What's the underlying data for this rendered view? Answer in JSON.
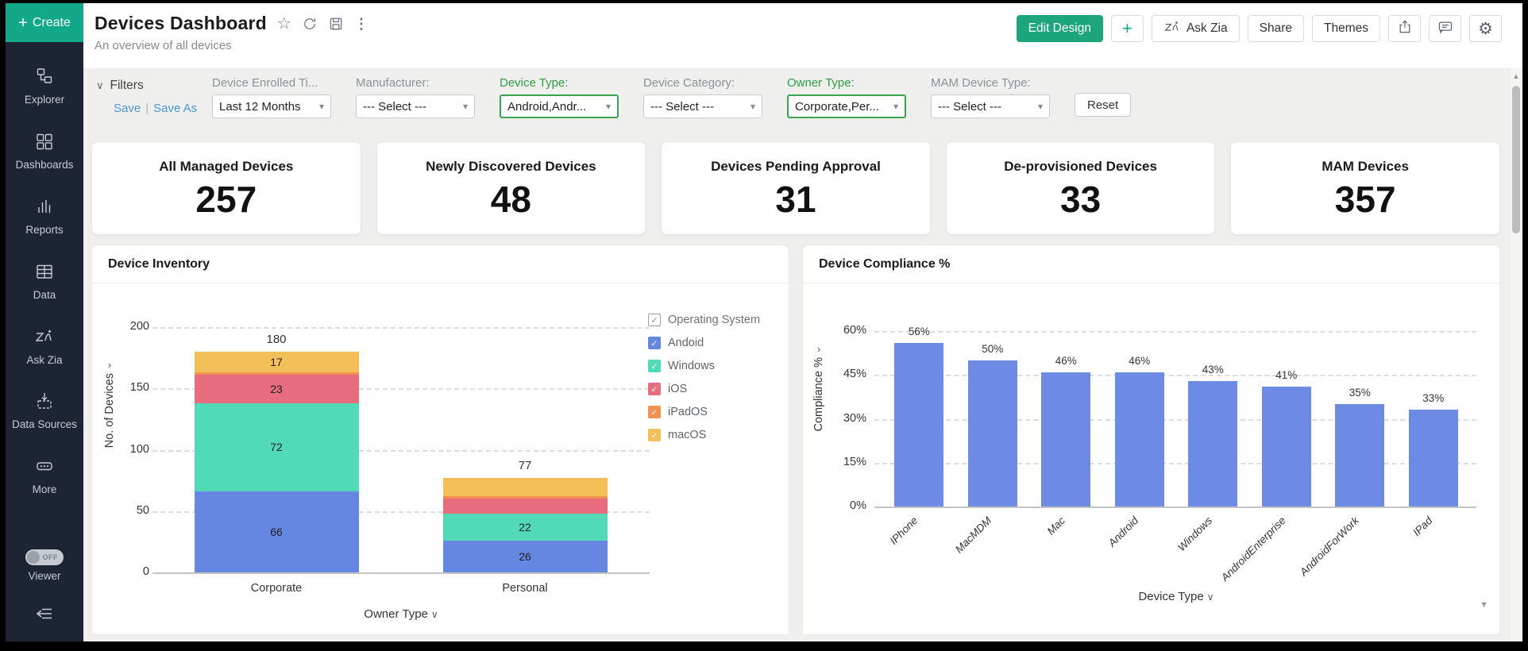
{
  "icons": {
    "plus": "+",
    "star": "☆",
    "kebab": "⋮",
    "caret": "▾",
    "filters_chevron": "∨",
    "axis_chevron": "∨",
    "y_chevron": "›",
    "scroll_up": "▲",
    "scroll_down": "▼",
    "gear": "⚙",
    "pipe": "|",
    "check": "✓"
  },
  "sidebar": {
    "create_label": "Create",
    "items": [
      {
        "label": "Explorer"
      },
      {
        "label": "Dashboards"
      },
      {
        "label": "Reports"
      },
      {
        "label": "Data"
      },
      {
        "label": "Ask Zia"
      },
      {
        "label": "Data Sources"
      },
      {
        "label": "More"
      }
    ],
    "viewer": {
      "label": "Viewer",
      "toggle_state": "OFF"
    }
  },
  "header": {
    "title": "Devices Dashboard",
    "subtitle": "An overview of all devices",
    "actions": {
      "edit_design": "Edit Design",
      "ask_zia": "Ask Zia",
      "share": "Share",
      "themes": "Themes"
    }
  },
  "filters": {
    "title": "Filters",
    "save": "Save",
    "save_as": "Save As",
    "reset": "Reset",
    "items": [
      {
        "label": "Device Enrolled Ti...",
        "value": "Last 12 Months",
        "active": false
      },
      {
        "label": "Manufacturer:",
        "value": "--- Select ---",
        "active": false
      },
      {
        "label": "Device Type:",
        "value": "Android,Andr...",
        "active": true
      },
      {
        "label": "Device Category:",
        "value": "--- Select ---",
        "active": false
      },
      {
        "label": "Owner Type:",
        "value": "Corporate,Per...",
        "active": true
      },
      {
        "label": "MAM Device Type:",
        "value": "--- Select ---",
        "active": false
      }
    ]
  },
  "kpis": [
    {
      "label": "All Managed Devices",
      "value": "257"
    },
    {
      "label": "Newly Discovered Devices",
      "value": "48"
    },
    {
      "label": "Devices Pending Approval",
      "value": "31"
    },
    {
      "label": "De-provisioned Devices",
      "value": "33"
    },
    {
      "label": "MAM Devices",
      "value": "357"
    }
  ],
  "chart_data": [
    {
      "type": "bar",
      "stacked": true,
      "title": "Device Inventory",
      "categories": [
        "Corporate",
        "Personal"
      ],
      "series": [
        {
          "name": "Andoid",
          "color": "#6687E1",
          "values": [
            66,
            26
          ],
          "labels": [
            "66",
            "26"
          ]
        },
        {
          "name": "Windows",
          "color": "#52D9B7",
          "values": [
            72,
            22
          ],
          "labels": [
            "72",
            "22"
          ]
        },
        {
          "name": "iOS",
          "color": "#E76D7E",
          "values": [
            23,
            12
          ],
          "labels": [
            "23",
            ""
          ]
        },
        {
          "name": "iPadOS",
          "color": "#F09250",
          "values": [
            2,
            2
          ],
          "labels": [
            "",
            ""
          ]
        },
        {
          "name": "macOS",
          "color": "#F2BF58",
          "values": [
            17,
            15
          ],
          "labels": [
            "17",
            ""
          ]
        }
      ],
      "totals": [
        "180",
        "77"
      ],
      "legend_title": "Operating System",
      "legend_position": "right",
      "grid": true,
      "xlabel": "Owner Type",
      "ylabel": "No. of Devices",
      "yticks": [
        0,
        50,
        100,
        150,
        200
      ],
      "ylim": [
        0,
        200
      ]
    },
    {
      "type": "bar",
      "title": "Device Compliance %",
      "categories": [
        "IPhone",
        "MacMDM",
        "Mac",
        "Android",
        "Windows",
        "AndroidEnterprise",
        "AndroidForWork",
        "IPad"
      ],
      "values": [
        56,
        50,
        46,
        46,
        43,
        41,
        35,
        33
      ],
      "value_labels": [
        "56%",
        "50%",
        "46%",
        "46%",
        "43%",
        "41%",
        "35%",
        "33%"
      ],
      "bar_color": "#6D8BE4",
      "grid": true,
      "xlabel": "Device Type",
      "ylabel": "Compliance %",
      "ytick_labels": [
        "0%",
        "15%",
        "30%",
        "45%",
        "60%"
      ],
      "ytick_values": [
        0,
        15,
        30,
        45,
        60
      ],
      "ylim": [
        0,
        60
      ]
    }
  ]
}
